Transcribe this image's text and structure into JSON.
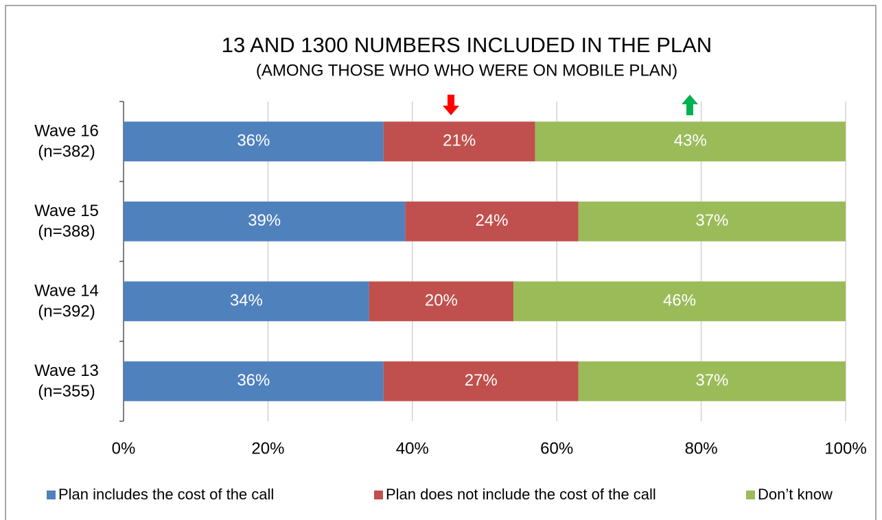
{
  "chart_data": {
    "type": "stacked_bar_horizontal",
    "title": "13 AND 1300 NUMBERS INCLUDED IN THE PLAN",
    "subtitle": "(AMONG THOSE WHO WHO WERE ON MOBILE PLAN)",
    "categories": [
      [
        "Wave 16",
        "(n=382)"
      ],
      [
        "Wave 15",
        "(n=388)"
      ],
      [
        "Wave 14",
        "(n=392)"
      ],
      [
        "Wave 13",
        "(n=355)"
      ]
    ],
    "series": [
      {
        "name": "Plan includes the cost of the call",
        "color": "#4f81bd",
        "values": [
          36,
          39,
          34,
          36
        ],
        "value_labels": [
          "36%",
          "39%",
          "34%",
          "36%"
        ]
      },
      {
        "name": "Plan does not include the cost of the call",
        "color": "#c0504d",
        "values": [
          21,
          24,
          20,
          27
        ],
        "value_labels": [
          "21%",
          "24%",
          "20%",
          "27%"
        ]
      },
      {
        "name": "Don’t know",
        "color": "#9bbb59",
        "values": [
          43,
          37,
          46,
          37
        ],
        "value_labels": [
          "43%",
          "37%",
          "46%",
          "37%"
        ]
      }
    ],
    "xlim": [
      0,
      100
    ],
    "xticks": [
      {
        "value": 0,
        "label": "0%"
      },
      {
        "value": 20,
        "label": "20%"
      },
      {
        "value": 40,
        "label": "40%"
      },
      {
        "value": 60,
        "label": "60%"
      },
      {
        "value": 80,
        "label": "80%"
      },
      {
        "value": 100,
        "label": "100%"
      }
    ],
    "grid": true,
    "legend": "bottom"
  }
}
